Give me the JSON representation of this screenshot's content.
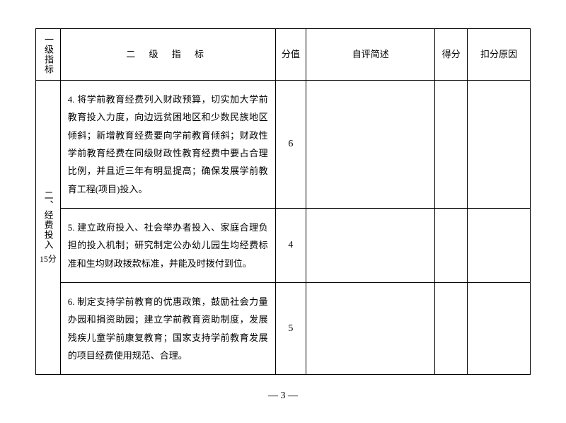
{
  "table": {
    "headers": {
      "level1": "一级指标",
      "level2": "二 级 指 标",
      "score": "分值",
      "selfeval": "自评简述",
      "gotscore": "得分",
      "reason": "扣分原因"
    },
    "level1": {
      "title": "二、经费投入",
      "subtitle": "15分"
    },
    "rows": [
      {
        "level2": "4. 将学前教育经费列入财政预算，切实加大学前教育投入力度，向边远贫困地区和少数民族地区倾斜；新增教育经费要向学前教育倾斜；财政性学前教育经费在同级财政性教育经费中要占合理比例，并且近三年有明显提高；确保发展学前教育工程(项目)投入。",
        "score": "6",
        "selfeval": "",
        "gotscore": "",
        "reason": ""
      },
      {
        "level2": "5. 建立政府投入、社会举办者投入、家庭合理负担的投入机制；研究制定公办幼儿园生均经费标准和生均财政拨款标准，并能及时拨付到位。",
        "score": "4",
        "selfeval": "",
        "gotscore": "",
        "reason": ""
      },
      {
        "level2": "6. 制定支持学前教育的优惠政策，鼓励社会力量办园和捐资助园；建立学前教育资助制度，发展残疾儿童学前康复教育；国家支持学前教育发展的项目经费使用规范、合理。",
        "score": "5",
        "selfeval": "",
        "gotscore": "",
        "reason": ""
      }
    ]
  },
  "page_number": "— 3 —",
  "styles": {
    "background_color": "#ffffff",
    "border_color": "#000000",
    "text_color": "#000000",
    "body_fontsize": 13,
    "score_fontsize": 14,
    "pagenum_fontsize": 14,
    "line_height": 1.95
  }
}
